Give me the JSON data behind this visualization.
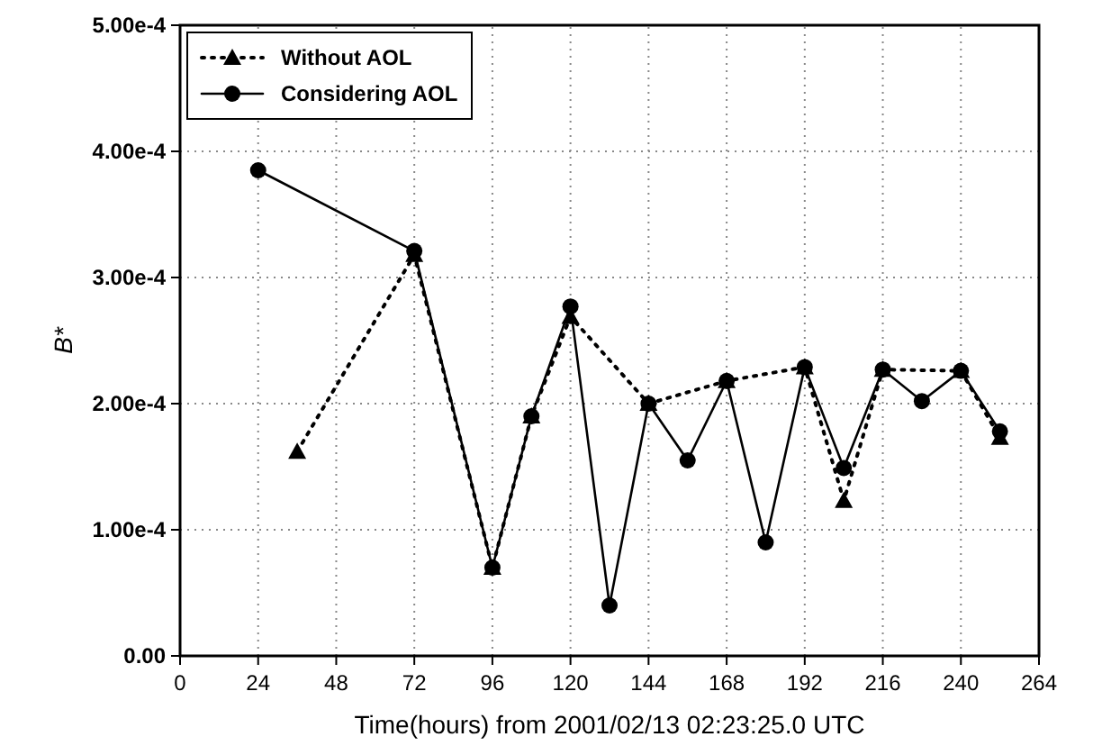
{
  "chart_data": {
    "type": "line",
    "xlabel": "Time(hours) from 2001/02/13 02:23:25.0 UTC",
    "ylabel": "B*",
    "xlim": [
      0,
      264
    ],
    "xticks": [
      0,
      24,
      48,
      72,
      96,
      120,
      144,
      168,
      192,
      216,
      240,
      264
    ],
    "ylim": [
      0,
      0.0005
    ],
    "yticks": [
      {
        "value": 0,
        "label": "0.00"
      },
      {
        "value": 0.0001,
        "label": "1.00e-4"
      },
      {
        "value": 0.0002,
        "label": "2.00e-4"
      },
      {
        "value": 0.0003,
        "label": "3.00e-4"
      },
      {
        "value": 0.0004,
        "label": "4.00e-4"
      },
      {
        "value": 0.0005,
        "label": "5.00e-4"
      }
    ],
    "grid": true,
    "legend": "top left",
    "series": [
      {
        "name": "Without AOL",
        "color": "#000000",
        "marker": "triangle",
        "line_style": "dotted",
        "x": [
          36,
          72,
          96,
          108,
          120,
          144,
          168,
          192,
          204,
          216,
          240,
          252
        ],
        "values": [
          0.000162,
          0.000318,
          7e-05,
          0.00019,
          0.000269,
          0.0002,
          0.000218,
          0.000229,
          0.000123,
          0.000227,
          0.000226,
          0.000173
        ]
      },
      {
        "name": "Considering AOL",
        "color": "#000000",
        "marker": "circle",
        "line_style": "solid",
        "x": [
          24,
          72,
          96,
          108,
          120,
          132,
          144,
          156,
          168,
          180,
          192,
          204,
          216,
          228,
          240,
          252
        ],
        "values": [
          0.000385,
          0.000321,
          7e-05,
          0.00019,
          0.000277,
          4e-05,
          0.0002,
          0.000155,
          0.000218,
          9e-05,
          0.000229,
          0.000149,
          0.000227,
          0.000202,
          0.000226,
          0.000178
        ]
      }
    ]
  }
}
